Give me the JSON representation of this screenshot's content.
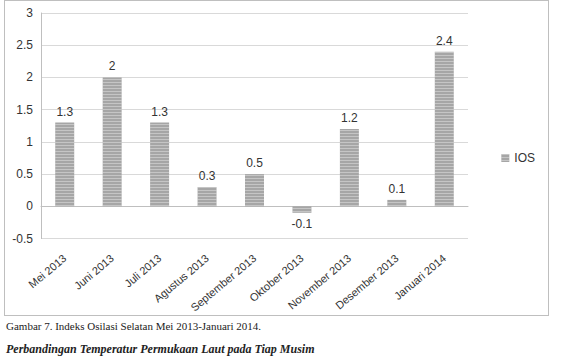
{
  "chart_data": {
    "type": "bar",
    "categories": [
      "Mei 2013",
      "Juni 2013",
      "Juli 2013",
      "Agustus 2013",
      "September 2013",
      "Oktober 2013",
      "November 2013",
      "Desember 2013",
      "Januari 2014"
    ],
    "series": [
      {
        "name": "IOS",
        "color": "#a6a6a6",
        "values": [
          1.3,
          2,
          1.3,
          0.3,
          0.5,
          -0.1,
          1.2,
          0.1,
          2.4
        ]
      }
    ],
    "ylim": [
      -0.5,
      3
    ],
    "yticks": [
      -0.5,
      0,
      0.5,
      1,
      1.5,
      2,
      2.5,
      3
    ],
    "grid": true,
    "legend": "right",
    "data_labels": true
  },
  "caption": "Gambar 7.     Indeks Osilasi Selatan Mei 2013-Januari 2014.",
  "heading": "Perbandingan Temperatur Permukaan Laut pada Tiap Musim"
}
